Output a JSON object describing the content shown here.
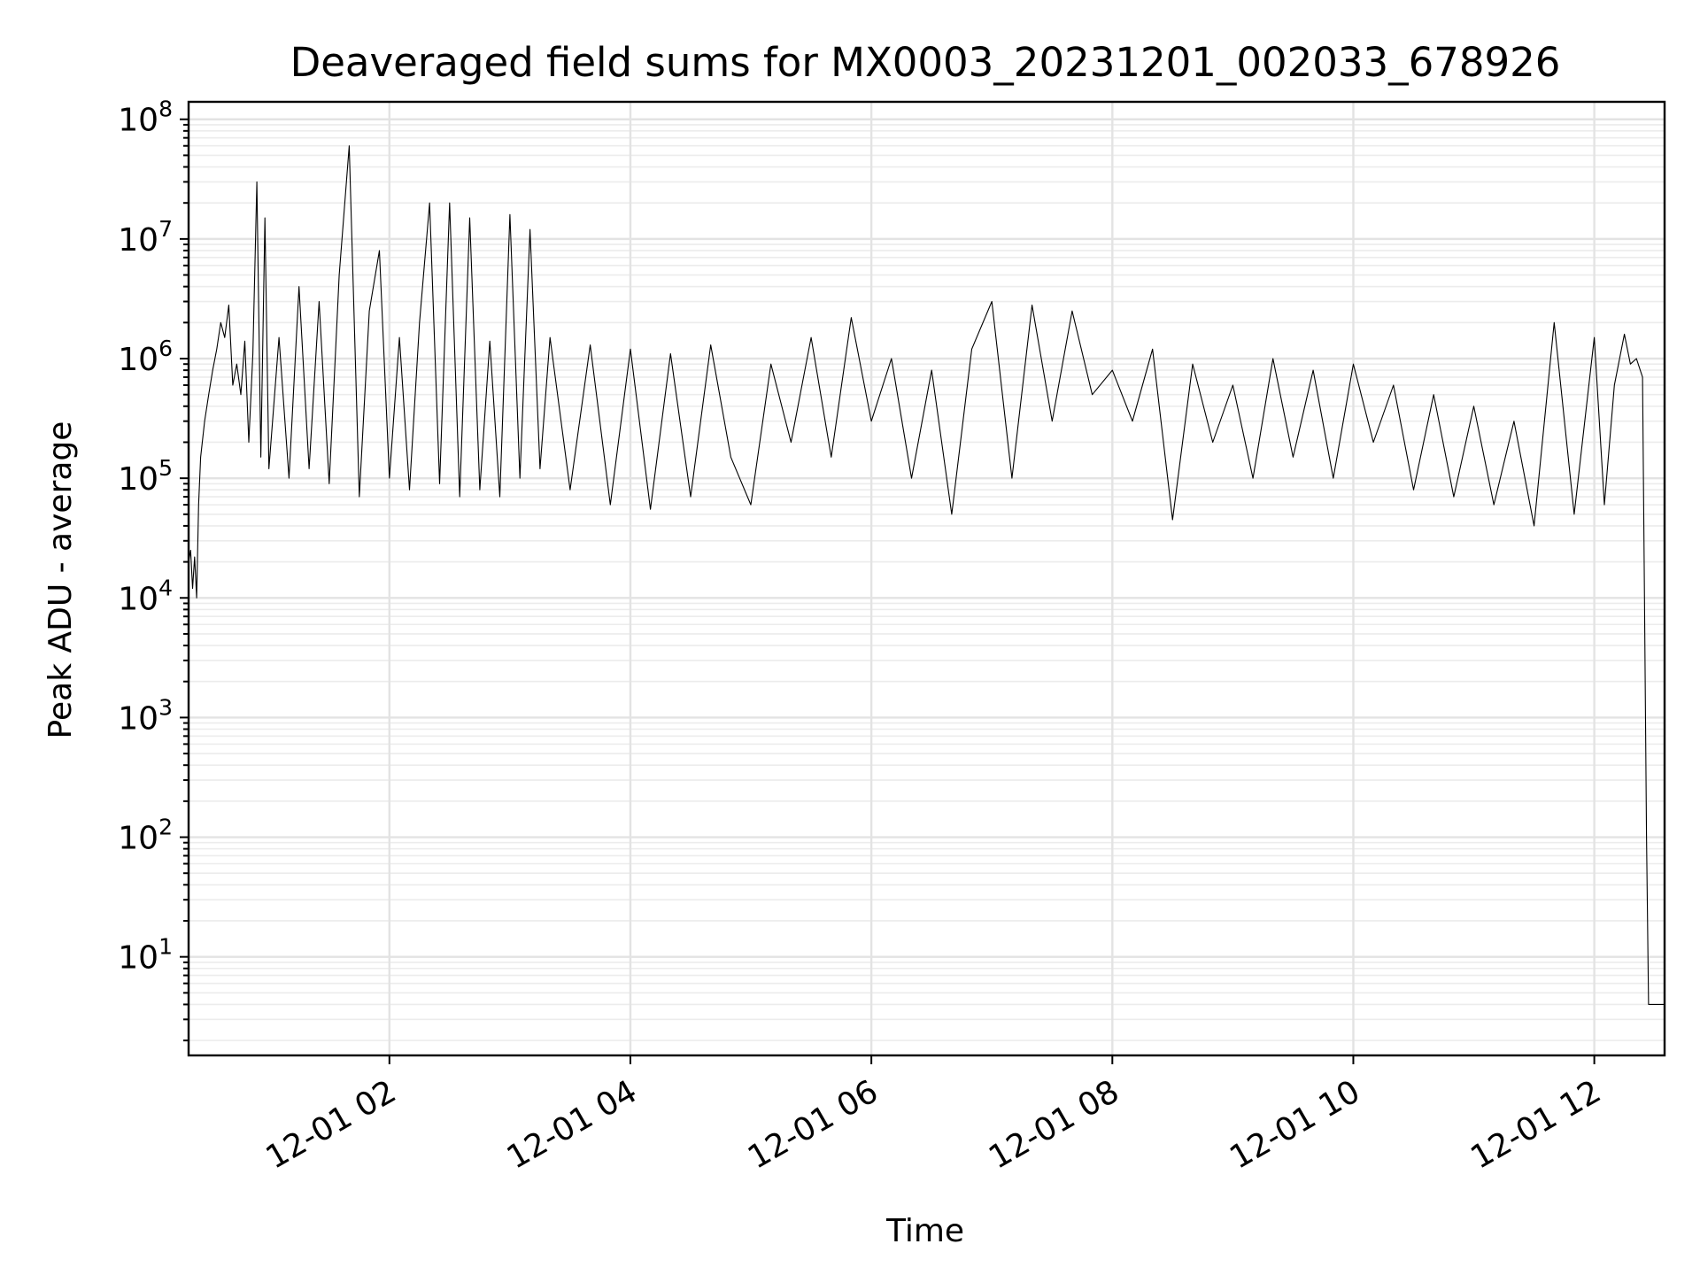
{
  "chart_data": {
    "type": "line",
    "title": "Deaveraged field sums for MX0003_20231201_002033_678926",
    "xlabel": "Time",
    "ylabel": "Peak ADU - average",
    "yscale": "log",
    "grid": true,
    "x_axis": {
      "range": [
        "2023-12-01 00:20",
        "2023-12-01 12:35"
      ],
      "ticks": [
        {
          "time": "2023-12-01 02:00",
          "label": "12-01 02"
        },
        {
          "time": "2023-12-01 04:00",
          "label": "12-01 04"
        },
        {
          "time": "2023-12-01 06:00",
          "label": "12-01 06"
        },
        {
          "time": "2023-12-01 08:00",
          "label": "12-01 08"
        },
        {
          "time": "2023-12-01 10:00",
          "label": "12-01 10"
        },
        {
          "time": "2023-12-01 12:00",
          "label": "12-01 12"
        }
      ]
    },
    "y_axis": {
      "range": [
        1.5,
        140000000
      ],
      "ticks": [
        {
          "value": 10,
          "base": "10",
          "exp": "1"
        },
        {
          "value": 100,
          "base": "10",
          "exp": "2"
        },
        {
          "value": 1000,
          "base": "10",
          "exp": "3"
        },
        {
          "value": 10000,
          "base": "10",
          "exp": "4"
        },
        {
          "value": 100000,
          "base": "10",
          "exp": "5"
        },
        {
          "value": 1000000,
          "base": "10",
          "exp": "6"
        },
        {
          "value": 10000000,
          "base": "10",
          "exp": "7"
        },
        {
          "value": 100000000,
          "base": "10",
          "exp": "8"
        }
      ]
    },
    "series": [
      {
        "color": "#000000",
        "points": [
          [
            "2023-12-01 00:20",
            20000
          ],
          [
            "2023-12-01 00:21",
            25000
          ],
          [
            "2023-12-01 00:22",
            12000
          ],
          [
            "2023-12-01 00:23",
            22000
          ],
          [
            "2023-12-01 00:24",
            10000
          ],
          [
            "2023-12-01 00:25",
            60000
          ],
          [
            "2023-12-01 00:26",
            150000
          ],
          [
            "2023-12-01 00:28",
            300000
          ],
          [
            "2023-12-01 00:30",
            500000
          ],
          [
            "2023-12-01 00:32",
            800000
          ],
          [
            "2023-12-01 00:34",
            1200000
          ],
          [
            "2023-12-01 00:36",
            2000000
          ],
          [
            "2023-12-01 00:38",
            1500000
          ],
          [
            "2023-12-01 00:40",
            2800000
          ],
          [
            "2023-12-01 00:42",
            600000
          ],
          [
            "2023-12-01 00:44",
            900000
          ],
          [
            "2023-12-01 00:46",
            500000
          ],
          [
            "2023-12-01 00:48",
            1400000
          ],
          [
            "2023-12-01 00:50",
            200000
          ],
          [
            "2023-12-01 00:52",
            1100000
          ],
          [
            "2023-12-01 00:54",
            30000000
          ],
          [
            "2023-12-01 00:56",
            150000
          ],
          [
            "2023-12-01 00:58",
            15000000
          ],
          [
            "2023-12-01 01:00",
            120000
          ],
          [
            "2023-12-01 01:05",
            1500000
          ],
          [
            "2023-12-01 01:10",
            100000
          ],
          [
            "2023-12-01 01:15",
            4000000
          ],
          [
            "2023-12-01 01:20",
            120000
          ],
          [
            "2023-12-01 01:25",
            3000000
          ],
          [
            "2023-12-01 01:30",
            90000
          ],
          [
            "2023-12-01 01:35",
            5000000
          ],
          [
            "2023-12-01 01:40",
            60000000
          ],
          [
            "2023-12-01 01:45",
            70000
          ],
          [
            "2023-12-01 01:50",
            2500000
          ],
          [
            "2023-12-01 01:55",
            8000000
          ],
          [
            "2023-12-01 02:00",
            100000
          ],
          [
            "2023-12-01 02:05",
            1500000
          ],
          [
            "2023-12-01 02:10",
            80000
          ],
          [
            "2023-12-01 02:15",
            2000000
          ],
          [
            "2023-12-01 02:20",
            20000000
          ],
          [
            "2023-12-01 02:25",
            90000
          ],
          [
            "2023-12-01 02:30",
            20000000
          ],
          [
            "2023-12-01 02:35",
            70000
          ],
          [
            "2023-12-01 02:40",
            15000000
          ],
          [
            "2023-12-01 02:45",
            80000
          ],
          [
            "2023-12-01 02:50",
            1400000
          ],
          [
            "2023-12-01 02:55",
            70000
          ],
          [
            "2023-12-01 03:00",
            16000000
          ],
          [
            "2023-12-01 03:05",
            100000
          ],
          [
            "2023-12-01 03:10",
            12000000
          ],
          [
            "2023-12-01 03:15",
            120000
          ],
          [
            "2023-12-01 03:20",
            1500000
          ],
          [
            "2023-12-01 03:30",
            80000
          ],
          [
            "2023-12-01 03:40",
            1300000
          ],
          [
            "2023-12-01 03:50",
            60000
          ],
          [
            "2023-12-01 04:00",
            1200000
          ],
          [
            "2023-12-01 04:10",
            55000
          ],
          [
            "2023-12-01 04:20",
            1100000
          ],
          [
            "2023-12-01 04:30",
            70000
          ],
          [
            "2023-12-01 04:40",
            1300000
          ],
          [
            "2023-12-01 04:50",
            150000
          ],
          [
            "2023-12-01 05:00",
            60000
          ],
          [
            "2023-12-01 05:10",
            900000
          ],
          [
            "2023-12-01 05:20",
            200000
          ],
          [
            "2023-12-01 05:30",
            1500000
          ],
          [
            "2023-12-01 05:40",
            150000
          ],
          [
            "2023-12-01 05:50",
            2200000
          ],
          [
            "2023-12-01 06:00",
            300000
          ],
          [
            "2023-12-01 06:10",
            1000000
          ],
          [
            "2023-12-01 06:20",
            100000
          ],
          [
            "2023-12-01 06:30",
            800000
          ],
          [
            "2023-12-01 06:40",
            50000
          ],
          [
            "2023-12-01 06:50",
            1200000
          ],
          [
            "2023-12-01 07:00",
            3000000
          ],
          [
            "2023-12-01 07:10",
            100000
          ],
          [
            "2023-12-01 07:20",
            2800000
          ],
          [
            "2023-12-01 07:30",
            300000
          ],
          [
            "2023-12-01 07:40",
            2500000
          ],
          [
            "2023-12-01 07:50",
            500000
          ],
          [
            "2023-12-01 08:00",
            800000
          ],
          [
            "2023-12-01 08:10",
            300000
          ],
          [
            "2023-12-01 08:20",
            1200000
          ],
          [
            "2023-12-01 08:30",
            45000
          ],
          [
            "2023-12-01 08:40",
            900000
          ],
          [
            "2023-12-01 08:50",
            200000
          ],
          [
            "2023-12-01 09:00",
            600000
          ],
          [
            "2023-12-01 09:10",
            100000
          ],
          [
            "2023-12-01 09:20",
            1000000
          ],
          [
            "2023-12-01 09:30",
            150000
          ],
          [
            "2023-12-01 09:40",
            800000
          ],
          [
            "2023-12-01 09:50",
            100000
          ],
          [
            "2023-12-01 10:00",
            900000
          ],
          [
            "2023-12-01 10:10",
            200000
          ],
          [
            "2023-12-01 10:20",
            600000
          ],
          [
            "2023-12-01 10:30",
            80000
          ],
          [
            "2023-12-01 10:40",
            500000
          ],
          [
            "2023-12-01 10:50",
            70000
          ],
          [
            "2023-12-01 11:00",
            400000
          ],
          [
            "2023-12-01 11:10",
            60000
          ],
          [
            "2023-12-01 11:20",
            300000
          ],
          [
            "2023-12-01 11:30",
            40000
          ],
          [
            "2023-12-01 11:40",
            2000000
          ],
          [
            "2023-12-01 11:50",
            50000
          ],
          [
            "2023-12-01 12:00",
            1500000
          ],
          [
            "2023-12-01 12:05",
            60000
          ],
          [
            "2023-12-01 12:10",
            600000
          ],
          [
            "2023-12-01 12:15",
            1600000
          ],
          [
            "2023-12-01 12:18",
            900000
          ],
          [
            "2023-12-01 12:21",
            1000000
          ],
          [
            "2023-12-01 12:24",
            700000
          ],
          [
            "2023-12-01 12:25",
            10000
          ],
          [
            "2023-12-01 12:26",
            100
          ],
          [
            "2023-12-01 12:27",
            4
          ],
          [
            "2023-12-01 12:35",
            4
          ]
        ]
      }
    ]
  }
}
